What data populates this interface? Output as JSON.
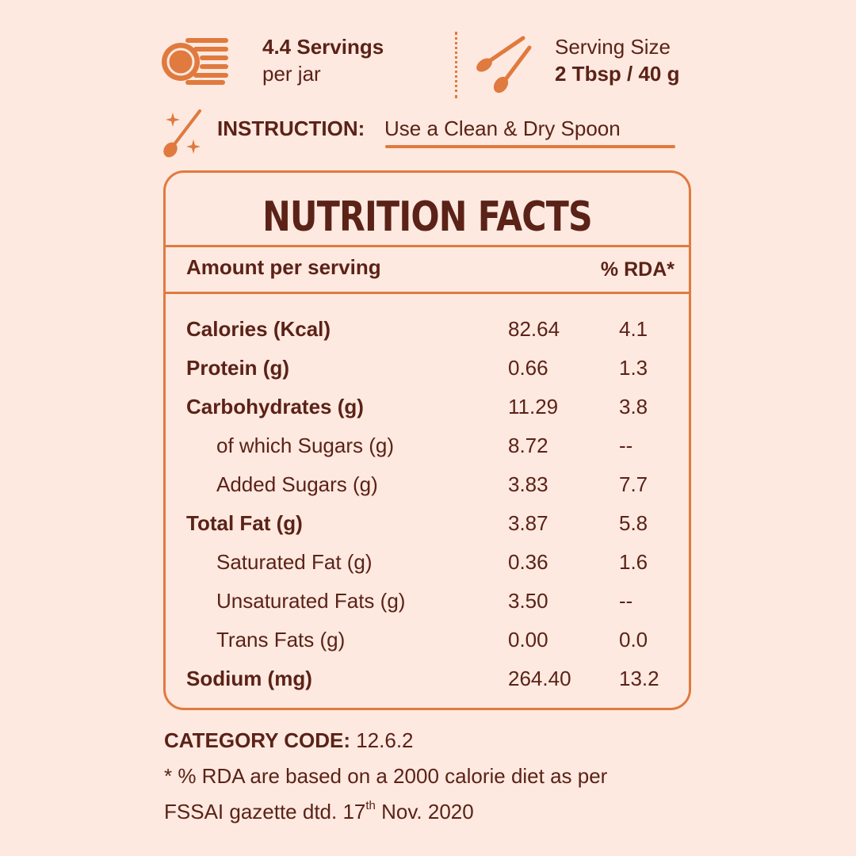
{
  "colors": {
    "accent": "#e07a3e",
    "text": "#5b2217",
    "background": "#fde9e0"
  },
  "servings": {
    "icon": "plates-icon",
    "bold": "4.4 Servings",
    "rest": "per jar"
  },
  "serving_size": {
    "icon": "spoons-icon",
    "label": "Serving Size",
    "value": "2 Tbsp / 40 g"
  },
  "instruction": {
    "icon": "sparkle-spoon-icon",
    "label": "INSTRUCTION:",
    "text": "Use a Clean & Dry Spoon"
  },
  "facts": {
    "title": "NUTRITION FACTS",
    "header_left": "Amount per serving",
    "header_right": "% RDA*",
    "rows": [
      {
        "label": "Calories (Kcal)",
        "value": "82.64",
        "rda": "4.1",
        "sub": false
      },
      {
        "label": "Protein (g)",
        "value": "0.66",
        "rda": "1.3",
        "sub": false
      },
      {
        "label": "Carbohydrates (g)",
        "value": "11.29",
        "rda": "3.8",
        "sub": false
      },
      {
        "label": "of which Sugars (g)",
        "value": "8.72",
        "rda": "--",
        "sub": true
      },
      {
        "label": "Added Sugars (g)",
        "value": "3.83",
        "rda": "7.7",
        "sub": true
      },
      {
        "label": "Total Fat (g)",
        "value": "3.87",
        "rda": "5.8",
        "sub": false
      },
      {
        "label": "Saturated Fat (g)",
        "value": "0.36",
        "rda": "1.6",
        "sub": true
      },
      {
        "label": "Unsaturated Fats (g)",
        "value": "3.50",
        "rda": "--",
        "sub": true
      },
      {
        "label": "Trans Fats (g)",
        "value": "0.00",
        "rda": "0.0",
        "sub": true
      },
      {
        "label": "Sodium (mg)",
        "value": "264.40",
        "rda": "13.2",
        "sub": false
      }
    ]
  },
  "footer": {
    "category_label": "CATEGORY CODE:",
    "category_value": "12.6.2",
    "note_line1": "* % RDA are based on a 2000 calorie diet as per",
    "note_line2_a": "FSSAI gazette dtd. 17",
    "note_sup": "th",
    "note_line2_b": " Nov. 2020"
  }
}
